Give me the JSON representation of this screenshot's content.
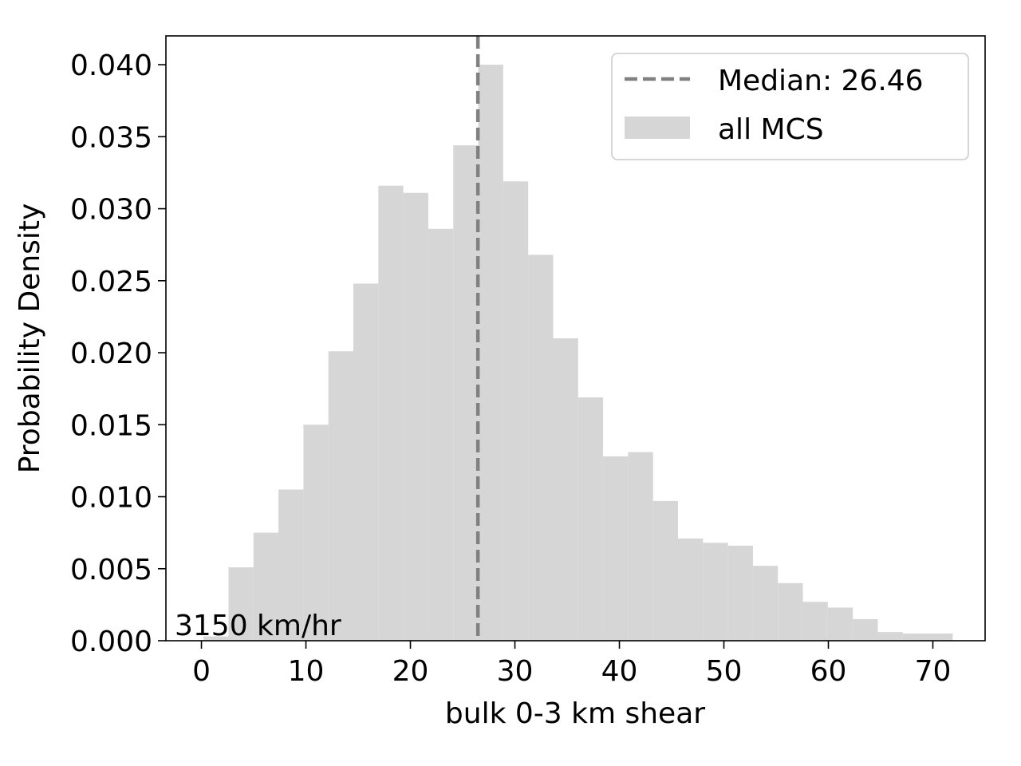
{
  "chart_data": {
    "type": "bar",
    "title": "",
    "xlabel": "bulk 0-3 km shear",
    "ylabel": "Probability Density",
    "xlim": [
      -3.4,
      75.0
    ],
    "ylim": [
      0,
      0.042
    ],
    "x_ticks": [
      0,
      10,
      20,
      30,
      40,
      50,
      60,
      70
    ],
    "y_ticks": [
      0.0,
      0.005,
      0.01,
      0.015,
      0.02,
      0.025,
      0.03,
      0.035,
      0.04
    ],
    "x_tick_labels": [
      "0",
      "10",
      "20",
      "30",
      "40",
      "50",
      "60",
      "70"
    ],
    "y_tick_labels": [
      "0.000",
      "0.005",
      "0.010",
      "0.015",
      "0.020",
      "0.025",
      "0.030",
      "0.035",
      "0.040"
    ],
    "grid": false,
    "legend_position": "top-right",
    "bin_edges": [
      0.2,
      2.59,
      4.98,
      7.37,
      9.76,
      12.15,
      14.54,
      16.93,
      19.32,
      21.71,
      24.1,
      26.49,
      28.88,
      31.27,
      33.66,
      36.05,
      38.44,
      40.83,
      43.22,
      45.61,
      48.0,
      50.39,
      52.78,
      55.17,
      57.56,
      59.95,
      62.34,
      64.73,
      67.12,
      69.51,
      71.9
    ],
    "density": [
      0.0003,
      0.0051,
      0.0075,
      0.0105,
      0.015,
      0.0201,
      0.0248,
      0.0316,
      0.0311,
      0.0286,
      0.0344,
      0.04,
      0.0319,
      0.0268,
      0.021,
      0.0169,
      0.0128,
      0.0131,
      0.0097,
      0.0071,
      0.0068,
      0.0066,
      0.0052,
      0.004,
      0.0027,
      0.0023,
      0.0015,
      0.0006,
      0.0005,
      0.0005
    ],
    "bar_color": "#d6d6d6",
    "median": {
      "value": 26.46,
      "color": "#808080",
      "style": "dashed"
    },
    "legend": {
      "median_label": "Median: 26.46",
      "hist_label": "all MCS"
    },
    "annotation": "3150 km/hr"
  }
}
